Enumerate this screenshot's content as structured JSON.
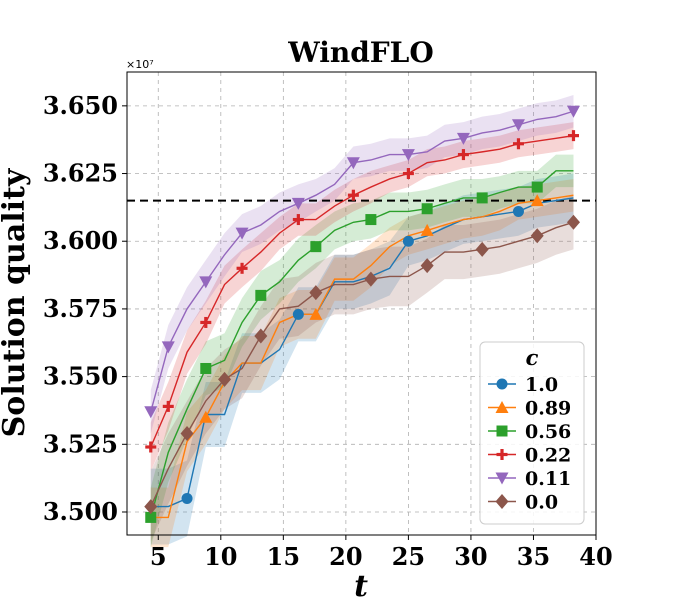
{
  "chart_data": {
    "type": "line",
    "title": "WindFLO",
    "xlabel": "t",
    "ylabel": "Solution quality",
    "y_multiplier_label": "×10⁷",
    "xlim": [
      2.5,
      40
    ],
    "ylim": [
      3.4915,
      3.6625
    ],
    "xticks": [
      5,
      10,
      15,
      20,
      25,
      30,
      35,
      40
    ],
    "xtick_labels": [
      "5",
      "10",
      "15",
      "20",
      "25",
      "30",
      "35",
      "40"
    ],
    "yticks": [
      3.5,
      3.525,
      3.55,
      3.575,
      3.6,
      3.625,
      3.65
    ],
    "ytick_labels": [
      "3.500",
      "3.525",
      "3.550",
      "3.575",
      "3.600",
      "3.625",
      "3.650"
    ],
    "grid": true,
    "reference_line": 3.615,
    "legend": {
      "title": "c",
      "position": "bottom-right"
    },
    "x": [
      4.4,
      5.8,
      7.3,
      8.8,
      10.3,
      11.7,
      13.2,
      14.7,
      16.2,
      17.6,
      19.1,
      20.6,
      22.0,
      23.5,
      25.0,
      26.5,
      27.9,
      29.4,
      30.9,
      32.3,
      33.8,
      35.3,
      36.8,
      38.2
    ],
    "series": [
      {
        "name": "1.0",
        "color": "#1f77b4",
        "marker": "circle",
        "marker_indices": [
          2,
          8,
          14,
          20
        ],
        "values": [
          3.502,
          3.502,
          3.505,
          3.536,
          3.536,
          3.555,
          3.555,
          3.56,
          3.573,
          3.573,
          3.585,
          3.585,
          3.587,
          3.59,
          3.6,
          3.602,
          3.605,
          3.608,
          3.609,
          3.61,
          3.611,
          3.614,
          3.615,
          3.616
        ],
        "band": [
          0.014,
          0.014,
          0.014,
          0.012,
          0.012,
          0.011,
          0.011,
          0.011,
          0.01,
          0.01,
          0.01,
          0.01,
          0.01,
          0.01,
          0.009,
          0.009,
          0.009,
          0.009,
          0.009,
          0.009,
          0.009,
          0.009,
          0.009,
          0.009
        ]
      },
      {
        "name": "0.89",
        "color": "#ff7f0e",
        "marker": "triangle-up",
        "marker_indices": [
          3,
          9,
          15,
          21
        ],
        "values": [
          3.498,
          3.498,
          3.526,
          3.535,
          3.548,
          3.555,
          3.555,
          3.57,
          3.573,
          3.573,
          3.586,
          3.586,
          3.591,
          3.598,
          3.602,
          3.604,
          3.606,
          3.608,
          3.609,
          3.611,
          3.614,
          3.615,
          3.616,
          3.617
        ],
        "band": [
          0.011,
          0.011,
          0.011,
          0.01,
          0.01,
          0.01,
          0.01,
          0.009,
          0.009,
          0.009,
          0.008,
          0.008,
          0.008,
          0.007,
          0.007,
          0.007,
          0.007,
          0.007,
          0.007,
          0.007,
          0.006,
          0.006,
          0.006,
          0.006
        ]
      },
      {
        "name": "0.56",
        "color": "#2ca02c",
        "marker": "square",
        "marker_indices": [
          0,
          3,
          6,
          9,
          12,
          15,
          18,
          21
        ],
        "values": [
          3.498,
          3.522,
          3.538,
          3.553,
          3.556,
          3.57,
          3.58,
          3.585,
          3.593,
          3.598,
          3.604,
          3.607,
          3.608,
          3.611,
          3.611,
          3.612,
          3.614,
          3.616,
          3.616,
          3.618,
          3.62,
          3.62,
          3.626,
          3.626
        ],
        "band": [
          0.011,
          0.011,
          0.011,
          0.01,
          0.01,
          0.009,
          0.009,
          0.008,
          0.008,
          0.008,
          0.007,
          0.007,
          0.007,
          0.007,
          0.007,
          0.007,
          0.007,
          0.007,
          0.007,
          0.006,
          0.006,
          0.006,
          0.006,
          0.006
        ]
      },
      {
        "name": "0.22",
        "color": "#d62728",
        "marker": "plus",
        "marker_indices": [
          0,
          1,
          3,
          5,
          8,
          11,
          14,
          17,
          20,
          23
        ],
        "values": [
          3.524,
          3.539,
          3.559,
          3.57,
          3.584,
          3.59,
          3.596,
          3.603,
          3.608,
          3.608,
          3.613,
          3.617,
          3.62,
          3.623,
          3.625,
          3.629,
          3.63,
          3.632,
          3.633,
          3.634,
          3.636,
          3.637,
          3.638,
          3.639
        ],
        "band": [
          0.009,
          0.009,
          0.008,
          0.008,
          0.007,
          0.007,
          0.007,
          0.006,
          0.006,
          0.006,
          0.006,
          0.006,
          0.006,
          0.005,
          0.005,
          0.005,
          0.005,
          0.005,
          0.005,
          0.005,
          0.005,
          0.005,
          0.005,
          0.005
        ]
      },
      {
        "name": "0.11",
        "color": "#9467bd",
        "marker": "triangle-down",
        "marker_indices": [
          0,
          1,
          3,
          5,
          8,
          11,
          14,
          17,
          20,
          23
        ],
        "values": [
          3.537,
          3.561,
          3.575,
          3.585,
          3.595,
          3.603,
          3.606,
          3.611,
          3.614,
          3.617,
          3.621,
          3.629,
          3.63,
          3.632,
          3.632,
          3.633,
          3.637,
          3.638,
          3.64,
          3.641,
          3.643,
          3.645,
          3.646,
          3.648
        ],
        "band": [
          0.008,
          0.008,
          0.008,
          0.008,
          0.008,
          0.007,
          0.007,
          0.007,
          0.007,
          0.006,
          0.006,
          0.006,
          0.006,
          0.006,
          0.006,
          0.006,
          0.006,
          0.006,
          0.006,
          0.006,
          0.006,
          0.006,
          0.006,
          0.006
        ]
      },
      {
        "name": "0.0",
        "color": "#8c564b",
        "marker": "diamond",
        "marker_indices": [
          0,
          2,
          4,
          6,
          9,
          12,
          15,
          18,
          21,
          23
        ],
        "values": [
          3.502,
          3.516,
          3.529,
          3.541,
          3.549,
          3.553,
          3.565,
          3.575,
          3.576,
          3.581,
          3.584,
          3.584,
          3.586,
          3.587,
          3.587,
          3.591,
          3.596,
          3.596,
          3.597,
          3.598,
          3.6,
          3.602,
          3.605,
          3.607
        ],
        "band": [
          0.013,
          0.013,
          0.012,
          0.012,
          0.011,
          0.011,
          0.011,
          0.011,
          0.011,
          0.011,
          0.011,
          0.011,
          0.011,
          0.011,
          0.011,
          0.01,
          0.01,
          0.01,
          0.01,
          0.01,
          0.01,
          0.01,
          0.01,
          0.01
        ]
      }
    ]
  }
}
